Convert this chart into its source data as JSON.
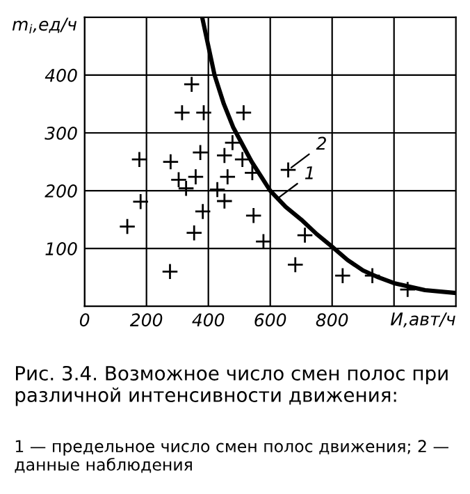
{
  "chart_data": {
    "type": "scatter",
    "ylabel": "m$_{i}$,ед/ч",
    "xlabel": "И,авт/ч",
    "xlim": [
      0,
      1200
    ],
    "ylim": [
      0,
      500
    ],
    "xticks": [
      0,
      200,
      400,
      600,
      800,
      {
        "value": 1000,
        "label": null
      }
    ],
    "yticks": [
      100,
      200,
      300,
      400
    ],
    "grid": true,
    "marker": "cross",
    "legend": false,
    "series": [
      {
        "color": "#000000",
        "x": [
          346,
          315,
          385,
          514,
          478,
          177,
          278,
          374,
          452,
          510,
          542,
          658,
          304,
          328,
          359,
          462,
          429,
          452,
          181,
          382,
          546,
          138,
          354,
          578,
          712,
          276,
          681,
          834,
          930,
          1044
        ],
        "values": [
          384,
          335,
          335,
          335,
          283,
          254,
          250,
          266,
          261,
          254,
          231,
          236,
          219,
          204,
          224,
          224,
          202,
          182,
          181,
          164,
          157,
          138,
          127,
          112,
          123,
          60,
          72,
          53,
          53,
          29
        ]
      },
      {
        "type": "line",
        "color": "#000000",
        "marker": "none",
        "x": [
          380,
          420,
          450,
          480,
          540,
          600,
          650,
          700,
          750,
          800,
          850,
          900,
          950,
          1000,
          1100,
          1200
        ],
        "values": [
          500,
          400,
          350,
          310,
          250,
          200,
          172,
          150,
          125,
          103,
          80,
          62,
          50,
          40,
          28,
          23
        ]
      }
    ],
    "annotations": [
      {
        "text": "2",
        "x": 658,
        "y": 236
      },
      {
        "text": "1",
        "x": 620,
        "y": 185
      },
      "Рис. 3.4. Возможное число смен полос при различной интенсивности движения:",
      "1 — предельное число смен полос движения; 2 — данные наблюдения"
    ]
  }
}
